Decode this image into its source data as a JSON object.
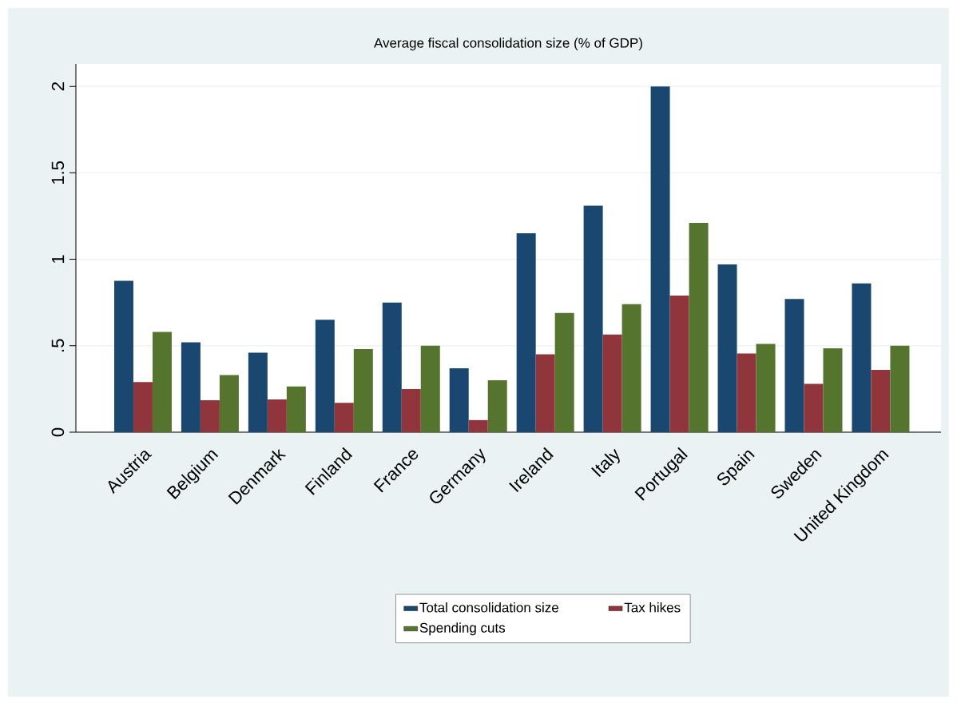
{
  "chart_data": {
    "type": "bar",
    "title": "Average fiscal consolidation size (% of GDP)",
    "categories": [
      "Austria",
      "Belgium",
      "Denmark",
      "Finland",
      "France",
      "Germany",
      "Ireland",
      "Italy",
      "Portugal",
      "Spain",
      "Sweden",
      "United Kingdom"
    ],
    "series": [
      {
        "name": "Total consolidation size",
        "color": "#1a476f",
        "values": [
          0.875,
          0.52,
          0.46,
          0.65,
          0.75,
          0.37,
          1.15,
          1.31,
          2.0,
          0.97,
          0.77,
          0.86
        ]
      },
      {
        "name": "Tax hikes",
        "color": "#90353b",
        "values": [
          0.29,
          0.185,
          0.19,
          0.17,
          0.25,
          0.07,
          0.45,
          0.565,
          0.79,
          0.455,
          0.28,
          0.36
        ]
      },
      {
        "name": "Spending cuts",
        "color": "#55752f",
        "values": [
          0.58,
          0.33,
          0.265,
          0.48,
          0.5,
          0.3,
          0.69,
          0.74,
          1.21,
          0.51,
          0.485,
          0.5
        ]
      }
    ],
    "ylim": [
      0,
      2.13
    ],
    "yticks": [
      0,
      {
        "value": 0.5,
        "label": ".5"
      },
      1,
      1.5,
      2
    ],
    "grid": "y",
    "legend": "bottom"
  }
}
